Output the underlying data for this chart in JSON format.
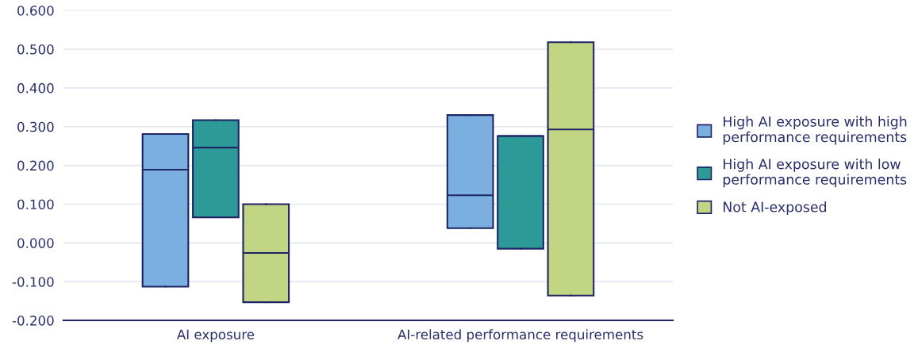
{
  "chart_data": {
    "type": "box",
    "categories": [
      "AI exposure",
      "AI-related performance requirements"
    ],
    "series": [
      {
        "name": "High AI exposure with high\nperformance requirements",
        "color": "#7aafe0",
        "boxes": [
          {
            "low": -0.113,
            "q1": -0.113,
            "median": 0.189,
            "q3": 0.281,
            "high": 0.281
          },
          {
            "low": 0.038,
            "q1": 0.038,
            "median": 0.123,
            "q3": 0.33,
            "high": 0.33
          }
        ]
      },
      {
        "name": "High AI exposure with low\nperformance requirements",
        "color": "#2e9a97",
        "boxes": [
          {
            "low": 0.066,
            "q1": 0.066,
            "median": 0.246,
            "q3": 0.317,
            "high": 0.317
          },
          {
            "low": -0.015,
            "q1": -0.015,
            "median": 0.276,
            "q3": 0.276,
            "high": 0.276
          }
        ]
      },
      {
        "name": "Not AI-exposed",
        "color": "#c2d582",
        "boxes": [
          {
            "low": -0.153,
            "q1": -0.153,
            "median": -0.026,
            "q3": 0.1,
            "high": 0.1
          },
          {
            "low": -0.136,
            "q1": -0.136,
            "median": 0.293,
            "q3": 0.518,
            "high": 0.518
          }
        ]
      }
    ],
    "ylim": [
      -0.2,
      0.6
    ],
    "yticks": [
      {
        "value": -0.2,
        "label": "-0.200"
      },
      {
        "value": -0.1,
        "label": "-0.100"
      },
      {
        "value": 0,
        "label": "0.000"
      },
      {
        "value": 0.1,
        "label": "0.100"
      },
      {
        "value": 0.2,
        "label": "0.200"
      },
      {
        "value": 0.3,
        "label": "0.300"
      },
      {
        "value": 0.4,
        "label": "0.400"
      },
      {
        "value": 0.5,
        "label": "0.500"
      },
      {
        "value": 0.6,
        "label": "0.600"
      }
    ],
    "grid": "y",
    "legend": "right"
  }
}
